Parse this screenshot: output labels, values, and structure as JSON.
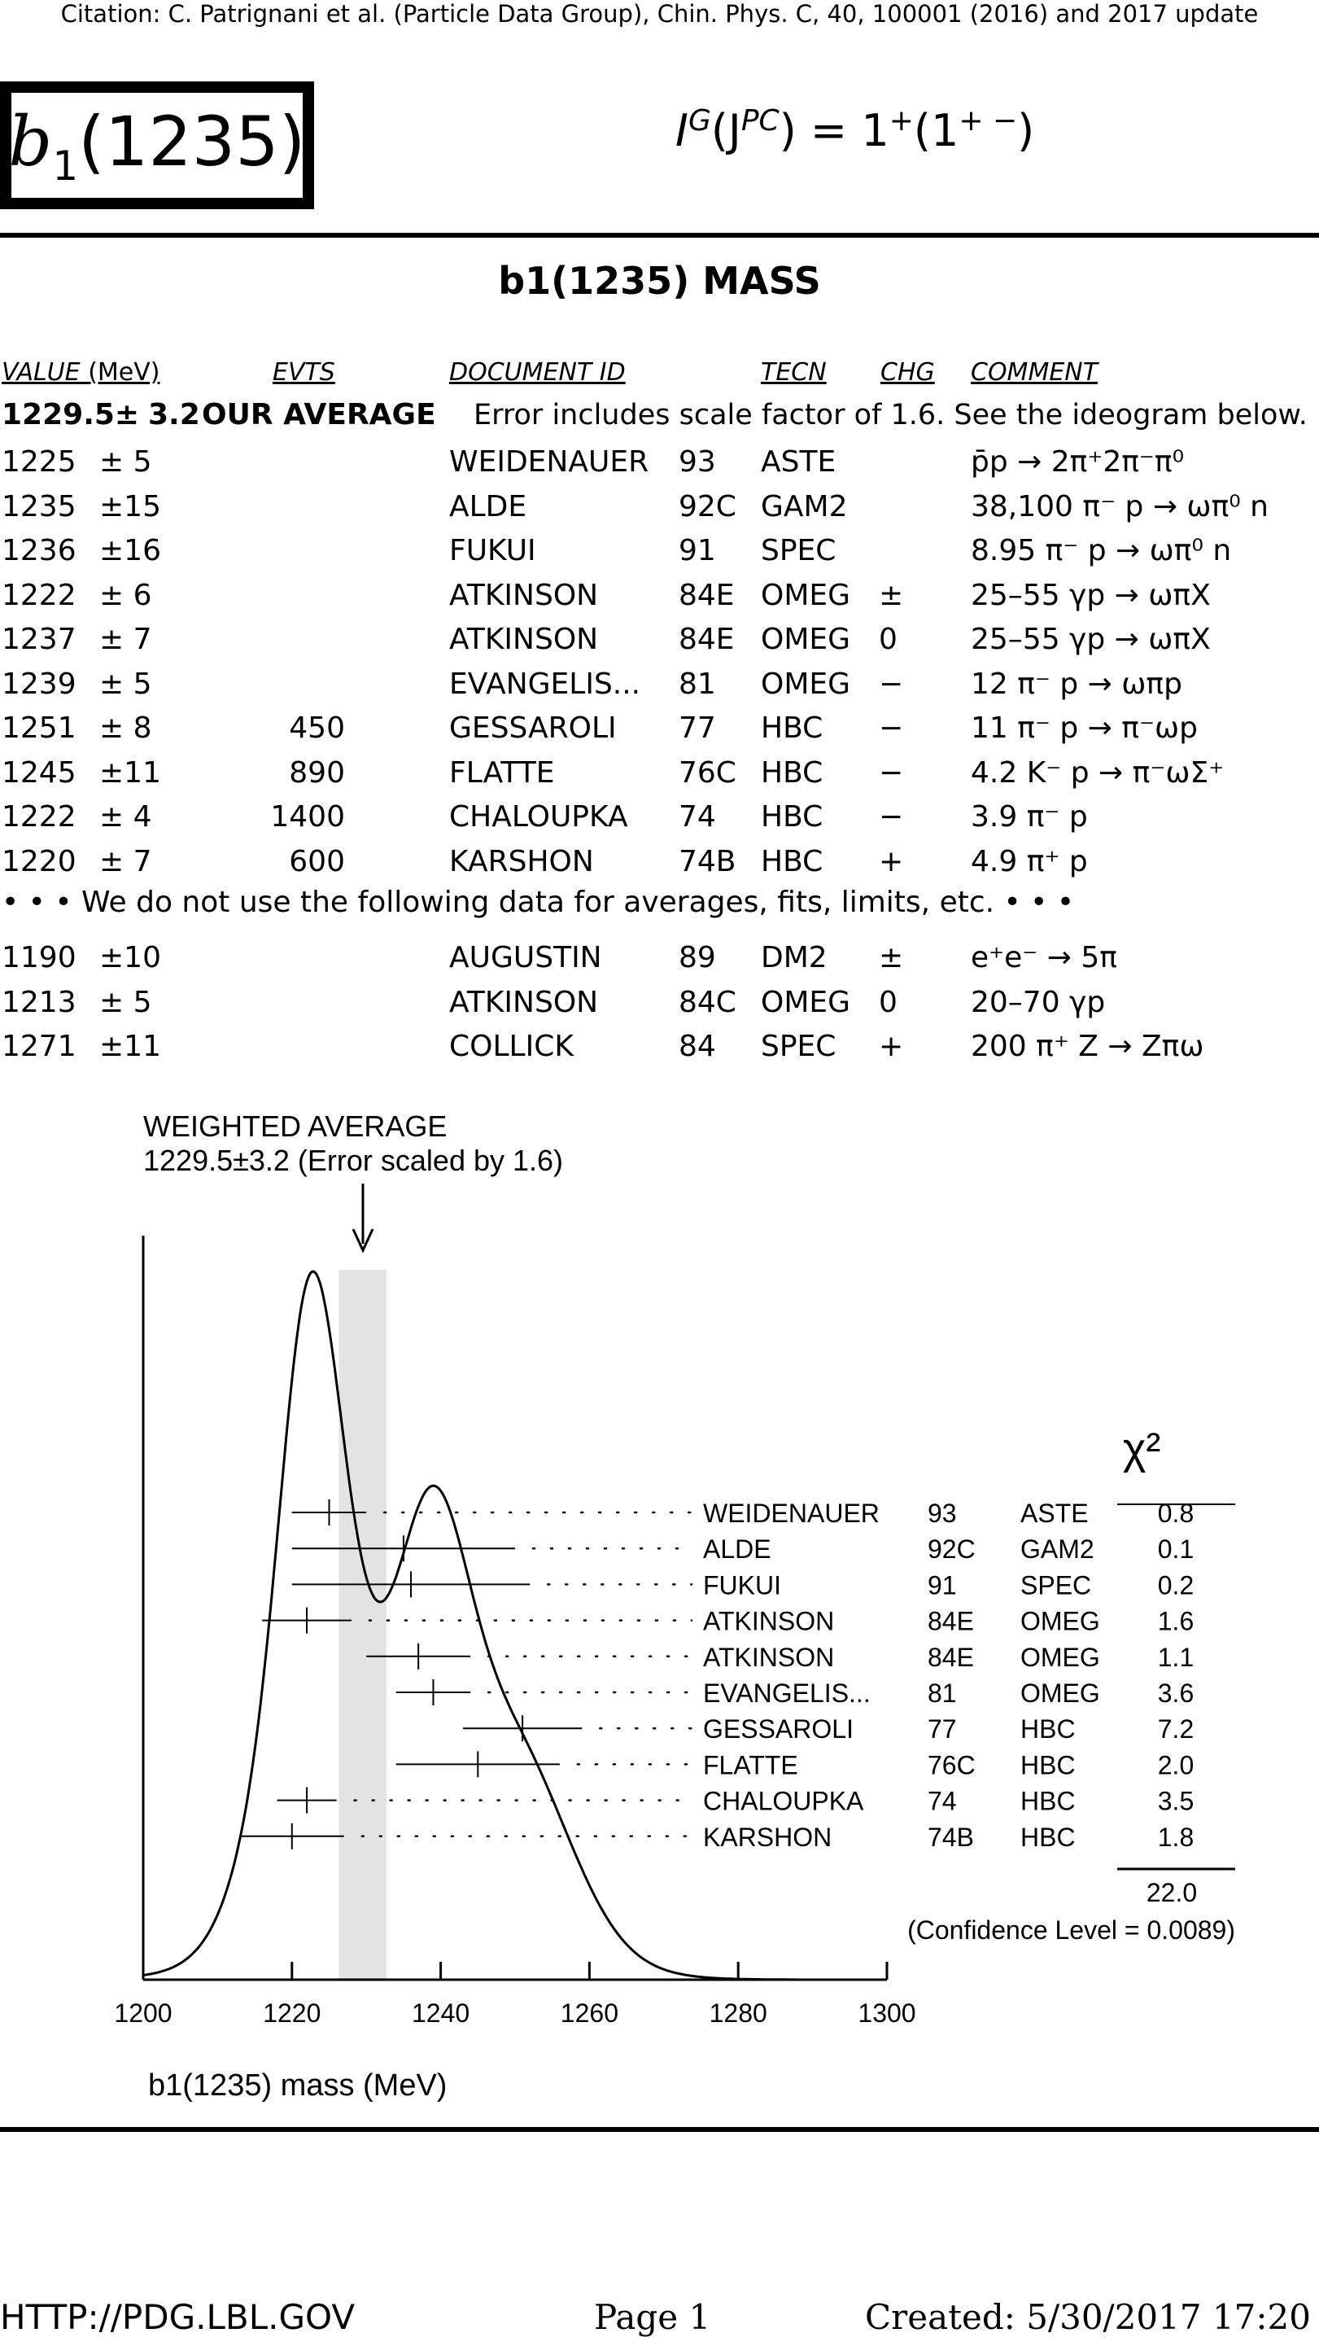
{
  "citation": "Citation: C. Patrignani et al. (Particle Data Group), Chin. Phys. C, 40, 100001 (2016) and 2017 update",
  "particle": {
    "name": "b",
    "sub": "1",
    "mass_label": "(1235)"
  },
  "quantum_numbers": {
    "I": "I",
    "G": "G",
    "JPC": "(J",
    "PC": "PC",
    "eq": ") = 1",
    "Gval": "+",
    "open": "(1",
    "pc_val": "+ −",
    "close": ")"
  },
  "section_title": "b1(1235) MASS",
  "headers": {
    "value": "VALUE",
    "value_unit": "(MeV)",
    "evts": "EVTS",
    "doc": "DOCUMENT ID",
    "tecn": "TECN",
    "chg": "CHG",
    "comment": "COMMENT"
  },
  "our_average": {
    "value": "1229.5±",
    "error": "3.2",
    "label": "OUR AVERAGE",
    "note": "Error includes scale factor of 1.6.  See the ideogram below."
  },
  "rows": [
    {
      "value": "1225",
      "err": "± 5",
      "evts": "",
      "doc": "WEIDENAUER",
      "year": "93",
      "tecn": "ASTE",
      "chg": "",
      "comment": "p̄p → 2π⁺2π⁻π⁰"
    },
    {
      "value": "1235",
      "err": "±15",
      "evts": "",
      "doc": "ALDE",
      "year": "92C",
      "tecn": "GAM2",
      "chg": "",
      "comment": "38,100 π⁻ p → ωπ⁰ n"
    },
    {
      "value": "1236",
      "err": "±16",
      "evts": "",
      "doc": "FUKUI",
      "year": "91",
      "tecn": "SPEC",
      "chg": "",
      "comment": "8.95 π⁻ p → ωπ⁰ n"
    },
    {
      "value": "1222",
      "err": "± 6",
      "evts": "",
      "doc": "ATKINSON",
      "year": "84E",
      "tecn": "OMEG",
      "chg": "±",
      "comment": "25–55 γp → ωπX"
    },
    {
      "value": "1237",
      "err": "± 7",
      "evts": "",
      "doc": "ATKINSON",
      "year": "84E",
      "tecn": "OMEG",
      "chg": "0",
      "comment": "25–55 γp → ωπX"
    },
    {
      "value": "1239",
      "err": "± 5",
      "evts": "",
      "doc": "EVANGELIS...",
      "year": "81",
      "tecn": "OMEG",
      "chg": "−",
      "comment": "12 π⁻ p → ωπp"
    },
    {
      "value": "1251",
      "err": "± 8",
      "evts": "450",
      "doc": "GESSAROLI",
      "year": "77",
      "tecn": "HBC",
      "chg": "−",
      "comment": "11 π⁻ p → π⁻ωp"
    },
    {
      "value": "1245",
      "err": "±11",
      "evts": "890",
      "doc": "FLATTE",
      "year": "76C",
      "tecn": "HBC",
      "chg": "−",
      "comment": "4.2 K⁻ p → π⁻ωΣ⁺"
    },
    {
      "value": "1222",
      "err": "± 4",
      "evts": "1400",
      "doc": "CHALOUPKA",
      "year": "74",
      "tecn": "HBC",
      "chg": "−",
      "comment": "3.9 π⁻ p"
    },
    {
      "value": "1220",
      "err": "± 7",
      "evts": "600",
      "doc": "KARSHON",
      "year": "74B",
      "tecn": "HBC",
      "chg": "+",
      "comment": "4.9 π⁺ p"
    }
  ],
  "not_used_note": "• • • We do not use the following data for averages, fits, limits, etc. • • •",
  "unused_rows": [
    {
      "value": "1190",
      "err": "±10",
      "evts": "",
      "doc": "AUGUSTIN",
      "year": "89",
      "tecn": "DM2",
      "chg": "±",
      "comment": "e⁺e⁻ → 5π"
    },
    {
      "value": "1213",
      "err": "± 5",
      "evts": "",
      "doc": "ATKINSON",
      "year": "84C",
      "tecn": "OMEG",
      "chg": "0",
      "comment": "20–70 γp"
    },
    {
      "value": "1271",
      "err": "±11",
      "evts": "",
      "doc": "COLLICK",
      "year": "84",
      "tecn": "SPEC",
      "chg": "+",
      "comment": "200 π⁺ Z → Zπω"
    }
  ],
  "chart_data": {
    "type": "scatter",
    "title": "WEIGHTED AVERAGE",
    "subtitle": "1229.5±3.2 (Error scaled by 1.6)",
    "xlabel": "b1(1235) mass (MeV)",
    "xlim": [
      1200,
      1300
    ],
    "x_ticks": [
      "1200",
      "1220",
      "1240",
      "1260",
      "1280",
      "1300"
    ],
    "average": 1229.5,
    "average_error": 3.2,
    "chi2_header": "χ²",
    "points": [
      {
        "label": "WEIDENAUER",
        "year": "93",
        "tecn": "ASTE",
        "x": 1225,
        "err": 5,
        "chi2": "0.8"
      },
      {
        "label": "ALDE",
        "year": "92C",
        "tecn": "GAM2",
        "x": 1235,
        "err": 15,
        "chi2": "0.1"
      },
      {
        "label": "FUKUI",
        "year": "91",
        "tecn": "SPEC",
        "x": 1236,
        "err": 16,
        "chi2": "0.2"
      },
      {
        "label": "ATKINSON",
        "year": "84E",
        "tecn": "OMEG",
        "x": 1222,
        "err": 6,
        "chi2": "1.6"
      },
      {
        "label": "ATKINSON",
        "year": "84E",
        "tecn": "OMEG",
        "x": 1237,
        "err": 7,
        "chi2": "1.1"
      },
      {
        "label": "EVANGELIS...",
        "year": "81",
        "tecn": "OMEG",
        "x": 1239,
        "err": 5,
        "chi2": "3.6"
      },
      {
        "label": "GESSAROLI",
        "year": "77",
        "tecn": "HBC",
        "x": 1251,
        "err": 8,
        "chi2": "7.2"
      },
      {
        "label": "FLATTE",
        "year": "76C",
        "tecn": "HBC",
        "x": 1245,
        "err": 11,
        "chi2": "2.0"
      },
      {
        "label": "CHALOUPKA",
        "year": "74",
        "tecn": "HBC",
        "x": 1222,
        "err": 4,
        "chi2": "3.5"
      },
      {
        "label": "KARSHON",
        "year": "74B",
        "tecn": "HBC",
        "x": 1220,
        "err": 7,
        "chi2": "1.8"
      }
    ],
    "chi2_total": "22.0",
    "confidence": "(Confidence Level = 0.0089)",
    "band_color": "#e3e3e3",
    "curve_color": "#000000"
  },
  "footer": {
    "url": "HTTP://PDG.LBL.GOV",
    "page": "Page 1",
    "created": "Created: 5/30/2017 17:20"
  }
}
